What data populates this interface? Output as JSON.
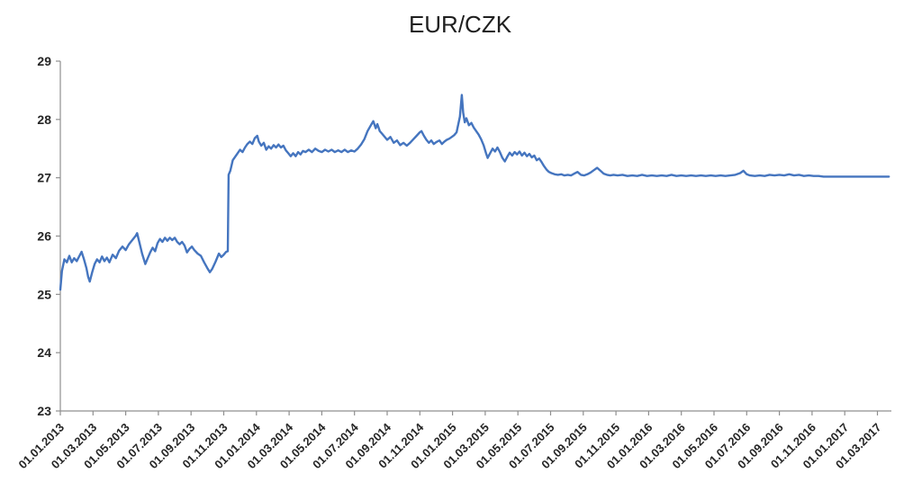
{
  "page": {
    "background_color": "#ffffff"
  },
  "chart_data": {
    "type": "line",
    "title": "EUR/CZK",
    "xlabel": "",
    "ylabel": "",
    "grid": false,
    "legend_position": "none",
    "axis_color": "#8f8f8f",
    "label_color": "#262626",
    "title_color": "#1f1f1f",
    "ylim": [
      23,
      29
    ],
    "y_ticks": [
      23,
      24,
      25,
      26,
      27,
      28,
      29
    ],
    "x_unit": "months_since_2013_01_01",
    "x_range_months": [
      0,
      50
    ],
    "x_tick_interval_months": 2,
    "x_tick_labels": [
      "01.01.2013",
      "01.03.2013",
      "01.05.2013",
      "01.07.2013",
      "01.09.2013",
      "01.11.2013",
      "01.01.2014",
      "01.03.2014",
      "01.05.2014",
      "01.07.2014",
      "01.09.2014",
      "01.11.2014",
      "01.01.2015",
      "01.03.2015",
      "01.05.2015",
      "01.07.2015",
      "01.09.2015",
      "01.11.2015",
      "01.01.2016",
      "01.03.2016",
      "01.05.2016",
      "01.07.2016",
      "01.09.2016",
      "01.11.2016",
      "01.01.2017",
      "01.03.2017"
    ],
    "series": [
      {
        "name": "EUR/CZK",
        "color": "#4575BF",
        "stroke_width": 2.4,
        "points": [
          [
            0,
            25.08
          ],
          [
            0.1,
            25.4
          ],
          [
            0.25,
            25.6
          ],
          [
            0.4,
            25.55
          ],
          [
            0.55,
            25.66
          ],
          [
            0.7,
            25.55
          ],
          [
            0.85,
            25.62
          ],
          [
            1.0,
            25.57
          ],
          [
            1.15,
            25.65
          ],
          [
            1.3,
            25.73
          ],
          [
            1.45,
            25.6
          ],
          [
            1.6,
            25.45
          ],
          [
            1.7,
            25.3
          ],
          [
            1.8,
            25.22
          ],
          [
            1.95,
            25.38
          ],
          [
            2.1,
            25.52
          ],
          [
            2.25,
            25.6
          ],
          [
            2.4,
            25.55
          ],
          [
            2.55,
            25.65
          ],
          [
            2.7,
            25.57
          ],
          [
            2.85,
            25.63
          ],
          [
            3.0,
            25.55
          ],
          [
            3.2,
            25.68
          ],
          [
            3.4,
            25.62
          ],
          [
            3.6,
            25.75
          ],
          [
            3.8,
            25.82
          ],
          [
            4.0,
            25.76
          ],
          [
            4.2,
            25.86
          ],
          [
            4.4,
            25.93
          ],
          [
            4.6,
            26.0
          ],
          [
            4.7,
            26.05
          ],
          [
            4.85,
            25.88
          ],
          [
            5.0,
            25.7
          ],
          [
            5.2,
            25.52
          ],
          [
            5.35,
            25.62
          ],
          [
            5.5,
            25.72
          ],
          [
            5.65,
            25.8
          ],
          [
            5.8,
            25.74
          ],
          [
            5.95,
            25.88
          ],
          [
            6.1,
            25.95
          ],
          [
            6.25,
            25.9
          ],
          [
            6.4,
            25.97
          ],
          [
            6.55,
            25.92
          ],
          [
            6.7,
            25.97
          ],
          [
            6.85,
            25.93
          ],
          [
            7.0,
            25.97
          ],
          [
            7.15,
            25.9
          ],
          [
            7.3,
            25.86
          ],
          [
            7.45,
            25.9
          ],
          [
            7.6,
            25.84
          ],
          [
            7.75,
            25.72
          ],
          [
            7.9,
            25.78
          ],
          [
            8.05,
            25.82
          ],
          [
            8.2,
            25.76
          ],
          [
            8.4,
            25.7
          ],
          [
            8.6,
            25.66
          ],
          [
            8.8,
            25.55
          ],
          [
            9.0,
            25.45
          ],
          [
            9.15,
            25.38
          ],
          [
            9.3,
            25.44
          ],
          [
            9.5,
            25.56
          ],
          [
            9.7,
            25.7
          ],
          [
            9.85,
            25.64
          ],
          [
            10.0,
            25.68
          ],
          [
            10.15,
            25.73
          ],
          [
            10.25,
            25.74
          ],
          [
            10.3,
            27.05
          ],
          [
            10.4,
            27.12
          ],
          [
            10.55,
            27.3
          ],
          [
            10.7,
            27.36
          ],
          [
            10.85,
            27.42
          ],
          [
            11.0,
            27.48
          ],
          [
            11.15,
            27.44
          ],
          [
            11.3,
            27.52
          ],
          [
            11.45,
            27.58
          ],
          [
            11.6,
            27.62
          ],
          [
            11.75,
            27.58
          ],
          [
            11.9,
            27.68
          ],
          [
            12.05,
            27.72
          ],
          [
            12.15,
            27.62
          ],
          [
            12.3,
            27.55
          ],
          [
            12.45,
            27.6
          ],
          [
            12.6,
            27.48
          ],
          [
            12.75,
            27.54
          ],
          [
            12.9,
            27.5
          ],
          [
            13.05,
            27.56
          ],
          [
            13.2,
            27.52
          ],
          [
            13.35,
            27.57
          ],
          [
            13.5,
            27.52
          ],
          [
            13.65,
            27.55
          ],
          [
            13.8,
            27.47
          ],
          [
            13.95,
            27.42
          ],
          [
            14.1,
            27.37
          ],
          [
            14.25,
            27.42
          ],
          [
            14.4,
            27.37
          ],
          [
            14.55,
            27.44
          ],
          [
            14.7,
            27.4
          ],
          [
            14.85,
            27.46
          ],
          [
            15.0,
            27.44
          ],
          [
            15.2,
            27.48
          ],
          [
            15.4,
            27.44
          ],
          [
            15.6,
            27.5
          ],
          [
            15.8,
            27.46
          ],
          [
            16.0,
            27.44
          ],
          [
            16.2,
            27.48
          ],
          [
            16.4,
            27.45
          ],
          [
            16.6,
            27.48
          ],
          [
            16.8,
            27.44
          ],
          [
            17.0,
            27.47
          ],
          [
            17.2,
            27.44
          ],
          [
            17.4,
            27.48
          ],
          [
            17.6,
            27.44
          ],
          [
            17.8,
            27.47
          ],
          [
            18.0,
            27.45
          ],
          [
            18.2,
            27.5
          ],
          [
            18.4,
            27.57
          ],
          [
            18.6,
            27.66
          ],
          [
            18.8,
            27.8
          ],
          [
            19.0,
            27.9
          ],
          [
            19.15,
            27.97
          ],
          [
            19.3,
            27.85
          ],
          [
            19.4,
            27.92
          ],
          [
            19.55,
            27.8
          ],
          [
            19.7,
            27.75
          ],
          [
            19.85,
            27.7
          ],
          [
            20.0,
            27.65
          ],
          [
            20.2,
            27.7
          ],
          [
            20.4,
            27.6
          ],
          [
            20.6,
            27.64
          ],
          [
            20.8,
            27.56
          ],
          [
            21.0,
            27.6
          ],
          [
            21.2,
            27.55
          ],
          [
            21.4,
            27.6
          ],
          [
            21.6,
            27.66
          ],
          [
            21.8,
            27.72
          ],
          [
            22.0,
            27.78
          ],
          [
            22.1,
            27.8
          ],
          [
            22.25,
            27.72
          ],
          [
            22.4,
            27.65
          ],
          [
            22.55,
            27.6
          ],
          [
            22.7,
            27.64
          ],
          [
            22.85,
            27.58
          ],
          [
            23.0,
            27.61
          ],
          [
            23.2,
            27.64
          ],
          [
            23.35,
            27.58
          ],
          [
            23.5,
            27.62
          ],
          [
            23.65,
            27.65
          ],
          [
            23.8,
            27.67
          ],
          [
            23.95,
            27.7
          ],
          [
            24.1,
            27.73
          ],
          [
            24.25,
            27.78
          ],
          [
            24.45,
            28.05
          ],
          [
            24.57,
            28.42
          ],
          [
            24.65,
            28.12
          ],
          [
            24.75,
            27.95
          ],
          [
            24.85,
            28.02
          ],
          [
            25.0,
            27.9
          ],
          [
            25.15,
            27.94
          ],
          [
            25.3,
            27.86
          ],
          [
            25.45,
            27.8
          ],
          [
            25.6,
            27.74
          ],
          [
            25.75,
            27.66
          ],
          [
            25.9,
            27.56
          ],
          [
            26.05,
            27.42
          ],
          [
            26.15,
            27.34
          ],
          [
            26.3,
            27.42
          ],
          [
            26.45,
            27.5
          ],
          [
            26.6,
            27.45
          ],
          [
            26.75,
            27.52
          ],
          [
            26.9,
            27.44
          ],
          [
            27.05,
            27.34
          ],
          [
            27.2,
            27.28
          ],
          [
            27.35,
            27.36
          ],
          [
            27.5,
            27.43
          ],
          [
            27.65,
            27.38
          ],
          [
            27.8,
            27.44
          ],
          [
            27.95,
            27.4
          ],
          [
            28.1,
            27.45
          ],
          [
            28.25,
            27.38
          ],
          [
            28.4,
            27.43
          ],
          [
            28.55,
            27.37
          ],
          [
            28.7,
            27.41
          ],
          [
            28.85,
            27.35
          ],
          [
            29.0,
            27.38
          ],
          [
            29.15,
            27.3
          ],
          [
            29.3,
            27.33
          ],
          [
            29.45,
            27.27
          ],
          [
            29.6,
            27.2
          ],
          [
            29.75,
            27.14
          ],
          [
            29.9,
            27.1
          ],
          [
            30.05,
            27.08
          ],
          [
            30.25,
            27.06
          ],
          [
            30.45,
            27.05
          ],
          [
            30.65,
            27.06
          ],
          [
            30.85,
            27.04
          ],
          [
            31.05,
            27.05
          ],
          [
            31.25,
            27.04
          ],
          [
            31.45,
            27.07
          ],
          [
            31.65,
            27.1
          ],
          [
            31.85,
            27.05
          ],
          [
            32.05,
            27.04
          ],
          [
            32.25,
            27.06
          ],
          [
            32.45,
            27.09
          ],
          [
            32.65,
            27.13
          ],
          [
            32.85,
            27.17
          ],
          [
            33.05,
            27.12
          ],
          [
            33.25,
            27.07
          ],
          [
            33.45,
            27.05
          ],
          [
            33.65,
            27.04
          ],
          [
            33.85,
            27.05
          ],
          [
            34.1,
            27.04
          ],
          [
            34.4,
            27.05
          ],
          [
            34.7,
            27.03
          ],
          [
            35.0,
            27.04
          ],
          [
            35.3,
            27.03
          ],
          [
            35.6,
            27.05
          ],
          [
            35.9,
            27.03
          ],
          [
            36.2,
            27.04
          ],
          [
            36.5,
            27.03
          ],
          [
            36.8,
            27.04
          ],
          [
            37.1,
            27.03
          ],
          [
            37.4,
            27.05
          ],
          [
            37.7,
            27.03
          ],
          [
            38.0,
            27.04
          ],
          [
            38.3,
            27.03
          ],
          [
            38.6,
            27.04
          ],
          [
            38.9,
            27.03
          ],
          [
            39.2,
            27.04
          ],
          [
            39.5,
            27.03
          ],
          [
            39.8,
            27.04
          ],
          [
            40.1,
            27.03
          ],
          [
            40.4,
            27.04
          ],
          [
            40.7,
            27.03
          ],
          [
            41.0,
            27.04
          ],
          [
            41.3,
            27.05
          ],
          [
            41.6,
            27.08
          ],
          [
            41.8,
            27.12
          ],
          [
            42.0,
            27.06
          ],
          [
            42.2,
            27.04
          ],
          [
            42.5,
            27.03
          ],
          [
            42.8,
            27.04
          ],
          [
            43.1,
            27.03
          ],
          [
            43.4,
            27.05
          ],
          [
            43.7,
            27.04
          ],
          [
            44.0,
            27.05
          ],
          [
            44.3,
            27.04
          ],
          [
            44.6,
            27.06
          ],
          [
            44.9,
            27.04
          ],
          [
            45.2,
            27.05
          ],
          [
            45.5,
            27.03
          ],
          [
            45.8,
            27.04
          ],
          [
            46.1,
            27.03
          ],
          [
            46.4,
            27.03
          ],
          [
            46.7,
            27.02
          ],
          [
            47.0,
            27.02
          ],
          [
            47.4,
            27.02
          ],
          [
            47.8,
            27.02
          ],
          [
            48.2,
            27.02
          ],
          [
            48.6,
            27.02
          ],
          [
            49.0,
            27.02
          ],
          [
            49.4,
            27.02
          ],
          [
            49.8,
            27.02
          ],
          [
            50.2,
            27.02
          ],
          [
            50.7,
            27.02
          ]
        ]
      }
    ]
  }
}
